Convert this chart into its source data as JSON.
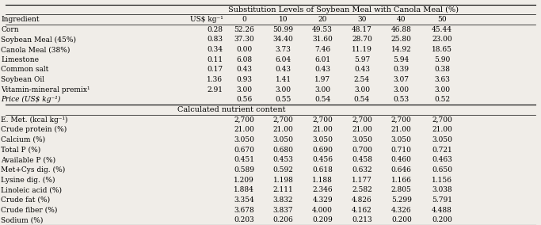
{
  "title": "Substitution Levels of Soybean Meal with Canola Meal (%)",
  "subtitle_calculated": "Calculated nutrient content",
  "col_headers": [
    "Ingredient",
    "US$ kg⁻¹",
    "0",
    "10",
    "20",
    "30",
    "40",
    "50"
  ],
  "ingredient_rows": [
    [
      "Corn",
      "0.28",
      "52.26",
      "50.99",
      "49.53",
      "48.17",
      "46.88",
      "45.44"
    ],
    [
      "Soybean Meal (45%)",
      "0.83",
      "37.30",
      "34.40",
      "31.60",
      "28.70",
      "25.80",
      "23.00"
    ],
    [
      "Canola Meal (38%)",
      "0.34",
      "0.00",
      "3.73",
      "7.46",
      "11.19",
      "14.92",
      "18.65"
    ],
    [
      "Limestone",
      "0.11",
      "6.08",
      "6.04",
      "6.01",
      "5.97",
      "5.94",
      "5.90"
    ],
    [
      "Common salt",
      "0.17",
      "0.43",
      "0.43",
      "0.43",
      "0.43",
      "0.39",
      "0.38"
    ],
    [
      "Soybean Oil",
      "1.36",
      "0.93",
      "1.41",
      "1.97",
      "2.54",
      "3.07",
      "3.63"
    ],
    [
      "Vitamin-mineral premix¹",
      "2.91",
      "3.00",
      "3.00",
      "3.00",
      "3.00",
      "3.00",
      "3.00"
    ],
    [
      "Price (US$ kg⁻¹)",
      "",
      "0.56",
      "0.55",
      "0.54",
      "0.54",
      "0.53",
      "0.52"
    ]
  ],
  "nutrient_rows": [
    [
      "E. Met. (kcal kg⁻¹)",
      "",
      "2,700",
      "2,700",
      "2,700",
      "2,700",
      "2,700",
      "2,700"
    ],
    [
      "Crude protein (%)",
      "",
      "21.00",
      "21.00",
      "21.00",
      "21.00",
      "21.00",
      "21.00"
    ],
    [
      "Calcium (%)",
      "",
      "3.050",
      "3.050",
      "3.050",
      "3.050",
      "3.050",
      "3.050"
    ],
    [
      "Total P (%)",
      "",
      "0.670",
      "0.680",
      "0.690",
      "0.700",
      "0.710",
      "0.721"
    ],
    [
      "Available P (%)",
      "",
      "0.451",
      "0.453",
      "0.456",
      "0.458",
      "0.460",
      "0.463"
    ],
    [
      "Met+Cys dig. (%)",
      "",
      "0.589",
      "0.592",
      "0.618",
      "0.632",
      "0.646",
      "0.650"
    ],
    [
      "Lysine dig. (%)",
      "",
      "1.209",
      "1.198",
      "1.188",
      "1.177",
      "1.166",
      "1.156"
    ],
    [
      "Linoleic acid (%)",
      "",
      "1.884",
      "2.111",
      "2.346",
      "2.582",
      "2.805",
      "3.038"
    ],
    [
      "Crude fat (%)",
      "",
      "3.354",
      "3.832",
      "4.329",
      "4.826",
      "5.299",
      "5.791"
    ],
    [
      "Crude fiber (%)",
      "",
      "3.678",
      "3.837",
      "4.000",
      "4.162",
      "4.326",
      "4.488"
    ],
    [
      "Sodium (%)",
      "",
      "0.203",
      "0.206",
      "0.209",
      "0.213",
      "0.200",
      "0.200"
    ]
  ],
  "bg_color": "#f0ede8",
  "line_color": "#000000",
  "text_color": "#000000",
  "font_size": 6.5,
  "title_font_size": 7.0
}
